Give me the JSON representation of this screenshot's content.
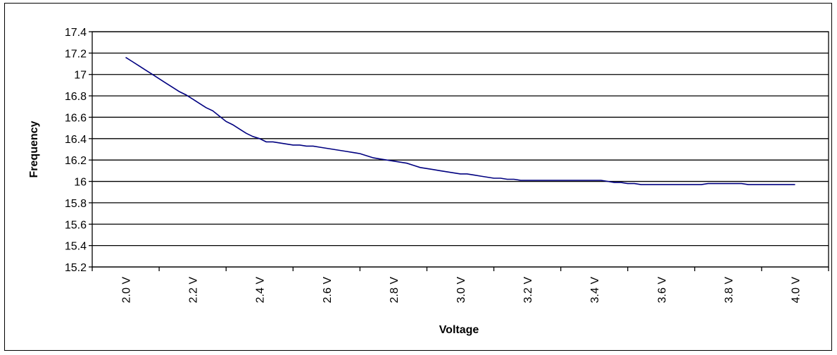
{
  "chart_data": {
    "type": "line",
    "title": "",
    "xlabel": "Voltage",
    "ylabel": "Frequency",
    "xlim": [
      1.9,
      4.1
    ],
    "ylim": [
      15.2,
      17.4
    ],
    "yticks": [
      "17.4",
      "17.2",
      "17",
      "16.8",
      "16.6",
      "16.4",
      "16.2",
      "16",
      "15.8",
      "15.6",
      "15.4",
      "15.2"
    ],
    "xticks": [
      "2.0 V",
      "2.2 V",
      "2.4 V",
      "2.6 V",
      "2.8 V",
      "3.0 V",
      "3.2 V",
      "3.4 V",
      "3.6 V",
      "3.8 V",
      "4.0 V"
    ],
    "grid": "horizontal",
    "colors": {
      "line": "#000080",
      "grid": "#000000",
      "background": "#ffffff"
    },
    "series": [
      {
        "x": [
          2.0,
          2.02,
          2.04,
          2.06,
          2.08,
          2.1,
          2.12,
          2.14,
          2.16,
          2.18,
          2.2,
          2.22,
          2.24,
          2.26,
          2.28,
          2.3,
          2.32,
          2.34,
          2.36,
          2.38,
          2.4,
          2.42,
          2.44,
          2.46,
          2.48,
          2.5,
          2.52,
          2.54,
          2.56,
          2.58,
          2.6,
          2.62,
          2.64,
          2.66,
          2.68,
          2.7,
          2.72,
          2.74,
          2.76,
          2.78,
          2.8,
          2.82,
          2.84,
          2.86,
          2.88,
          2.9,
          2.92,
          2.94,
          2.96,
          2.98,
          3.0,
          3.02,
          3.04,
          3.06,
          3.08,
          3.1,
          3.12,
          3.14,
          3.16,
          3.18,
          3.2,
          3.22,
          3.24,
          3.26,
          3.28,
          3.3,
          3.32,
          3.34,
          3.36,
          3.38,
          3.4,
          3.42,
          3.44,
          3.46,
          3.48,
          3.5,
          3.52,
          3.54,
          3.56,
          3.58,
          3.6,
          3.62,
          3.64,
          3.66,
          3.68,
          3.7,
          3.72,
          3.74,
          3.76,
          3.78,
          3.8,
          3.82,
          3.84,
          3.86,
          3.88,
          3.9,
          3.92,
          3.94,
          3.96,
          3.98,
          4.0
        ],
        "y": [
          17.16,
          17.12,
          17.08,
          17.04,
          17.0,
          16.96,
          16.92,
          16.88,
          16.84,
          16.81,
          16.77,
          16.73,
          16.69,
          16.66,
          16.61,
          16.56,
          16.53,
          16.49,
          16.45,
          16.42,
          16.4,
          16.37,
          16.37,
          16.36,
          16.35,
          16.34,
          16.34,
          16.33,
          16.33,
          16.32,
          16.31,
          16.3,
          16.29,
          16.28,
          16.27,
          16.26,
          16.24,
          16.22,
          16.21,
          16.2,
          16.19,
          16.18,
          16.17,
          16.15,
          16.13,
          16.12,
          16.11,
          16.1,
          16.09,
          16.08,
          16.07,
          16.07,
          16.06,
          16.05,
          16.04,
          16.03,
          16.03,
          16.02,
          16.02,
          16.01,
          16.01,
          16.01,
          16.01,
          16.01,
          16.01,
          16.01,
          16.01,
          16.01,
          16.01,
          16.01,
          16.01,
          16.01,
          16.0,
          15.99,
          15.99,
          15.98,
          15.98,
          15.97,
          15.97,
          15.97,
          15.97,
          15.97,
          15.97,
          15.97,
          15.97,
          15.97,
          15.97,
          15.98,
          15.98,
          15.98,
          15.98,
          15.98,
          15.98,
          15.97,
          15.97,
          15.97,
          15.97,
          15.97,
          15.97,
          15.97,
          15.97
        ]
      }
    ]
  }
}
